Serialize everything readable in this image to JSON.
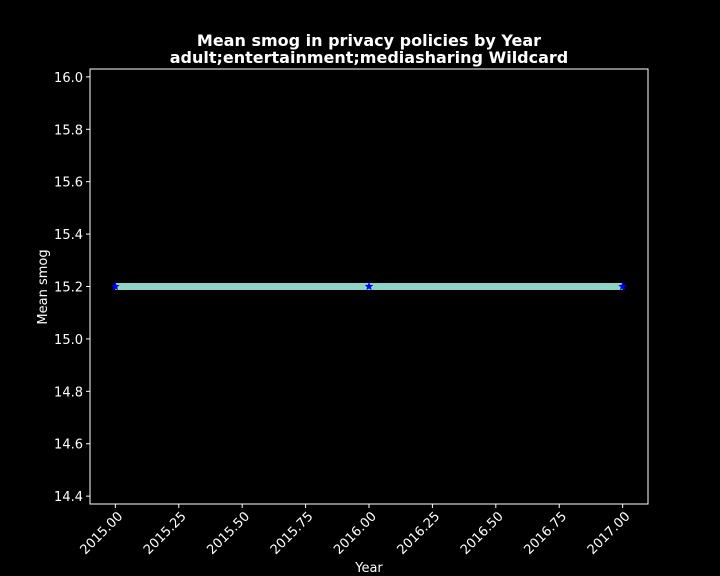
{
  "chart_data": {
    "type": "line",
    "title": "Mean smog in privacy policies by Year",
    "subtitle": "adult;entertainment;mediasharing Wildcard",
    "xlabel": "Year",
    "ylabel": "Mean smog",
    "x": [
      2015,
      2016,
      2017
    ],
    "series": [
      {
        "values": [
          15.2,
          15.2,
          15.2
        ]
      }
    ],
    "xlim": [
      2014.9,
      2017.1
    ],
    "ylim": [
      14.37,
      16.03
    ],
    "xticks": [
      2015.0,
      2015.25,
      2015.5,
      2015.75,
      2016.0,
      2016.25,
      2016.5,
      2016.75,
      2017.0
    ],
    "xtick_labels": [
      "2015.00",
      "2015.25",
      "2015.50",
      "2015.75",
      "2016.00",
      "2016.25",
      "2016.50",
      "2016.75",
      "2017.00"
    ],
    "yticks": [
      14.4,
      14.6,
      14.8,
      15.0,
      15.2,
      15.4,
      15.6,
      15.8,
      16.0
    ],
    "ytick_labels": [
      "14.4",
      "14.6",
      "14.8",
      "15.0",
      "15.2",
      "15.4",
      "15.6",
      "15.8",
      "16.0"
    ],
    "grid": false,
    "colors": {
      "background": "#000000",
      "line": "#8dd3c7",
      "marker": "#0000ff",
      "axes": "#ffffff",
      "text": "#ffffff"
    },
    "marker": "star"
  }
}
